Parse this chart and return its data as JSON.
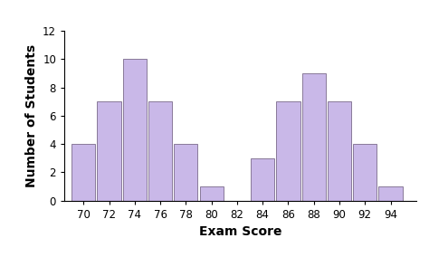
{
  "scores": [
    70,
    72,
    74,
    76,
    78,
    80,
    82,
    84,
    86,
    88,
    90,
    92,
    94
  ],
  "values": [
    4,
    7,
    10,
    7,
    4,
    1,
    0,
    3,
    7,
    9,
    7,
    4,
    1
  ],
  "bar_color": "#c9b8e8",
  "bar_edge_color": "#7a6a8a",
  "bar_width": 1.85,
  "xlim": [
    68.5,
    96
  ],
  "ylim": [
    0,
    12
  ],
  "xticks": [
    70,
    72,
    74,
    76,
    78,
    80,
    82,
    84,
    86,
    88,
    90,
    92,
    94
  ],
  "yticks": [
    0,
    2,
    4,
    6,
    8,
    10,
    12
  ],
  "xlabel": "Exam Score",
  "ylabel": "Number of Students",
  "xlabel_fontsize": 10,
  "ylabel_fontsize": 10,
  "xlabel_fontweight": "bold",
  "ylabel_fontweight": "bold",
  "tick_fontsize": 8.5,
  "background_color": "#ffffff"
}
